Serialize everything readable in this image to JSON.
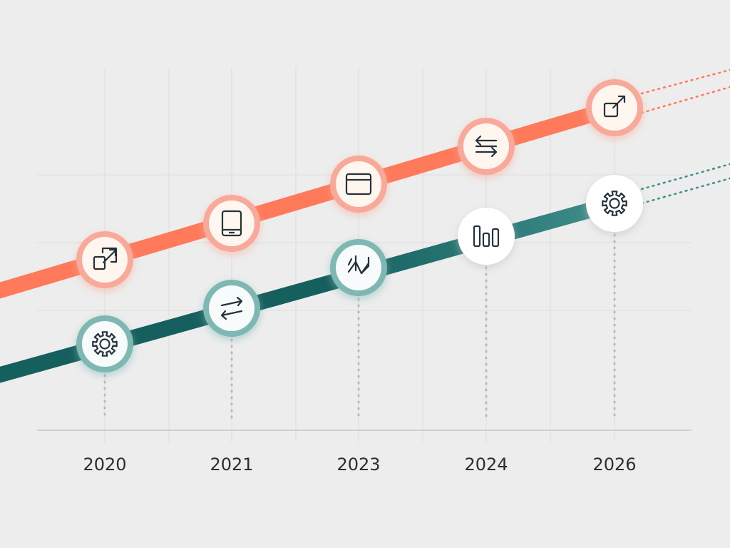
{
  "colors": {
    "background": "#ededed",
    "coral_line": "#ff7a5a",
    "coral_ring": "#f8a999",
    "coral_fill": "#fff6ef",
    "teal_line": "#155f5f",
    "teal_line_light": "#3f8f8c",
    "teal_ring": "#7fb7b2",
    "teal_fill": "#f7fbfb",
    "white_fill": "#ffffff",
    "icon_stroke": "#25323a",
    "grid": "#dddddd",
    "dots": "#b9b9b9"
  },
  "years": [
    "2020",
    "2021",
    "2023",
    "2024",
    "2026"
  ],
  "tracks": [
    {
      "name": "",
      "color_key": "coral",
      "milestones": [
        {
          "year": "2020",
          "icon": "external-link-square-icon",
          "style": "coral"
        },
        {
          "year": "2021",
          "icon": "tablet-icon",
          "style": "coral"
        },
        {
          "year": "2023",
          "icon": "browser-window-icon",
          "style": "coral"
        },
        {
          "year": "2024",
          "icon": "sync-arrows-icon",
          "style": "coral"
        },
        {
          "year": "2026",
          "icon": "open-external-icon",
          "style": "coral"
        }
      ]
    },
    {
      "name": "",
      "color_key": "teal",
      "milestones": [
        {
          "year": "2020",
          "icon": "gear-icon",
          "style": "teal"
        },
        {
          "year": "2021",
          "icon": "transfer-arrows-icon",
          "style": "teal"
        },
        {
          "year": "2023",
          "icon": "zigzag-arrows-icon",
          "style": "teal"
        },
        {
          "year": "2024",
          "icon": "bar-pillars-icon",
          "style": "white"
        },
        {
          "year": "2026",
          "icon": "settings-gear-icon",
          "style": "white"
        }
      ]
    }
  ]
}
